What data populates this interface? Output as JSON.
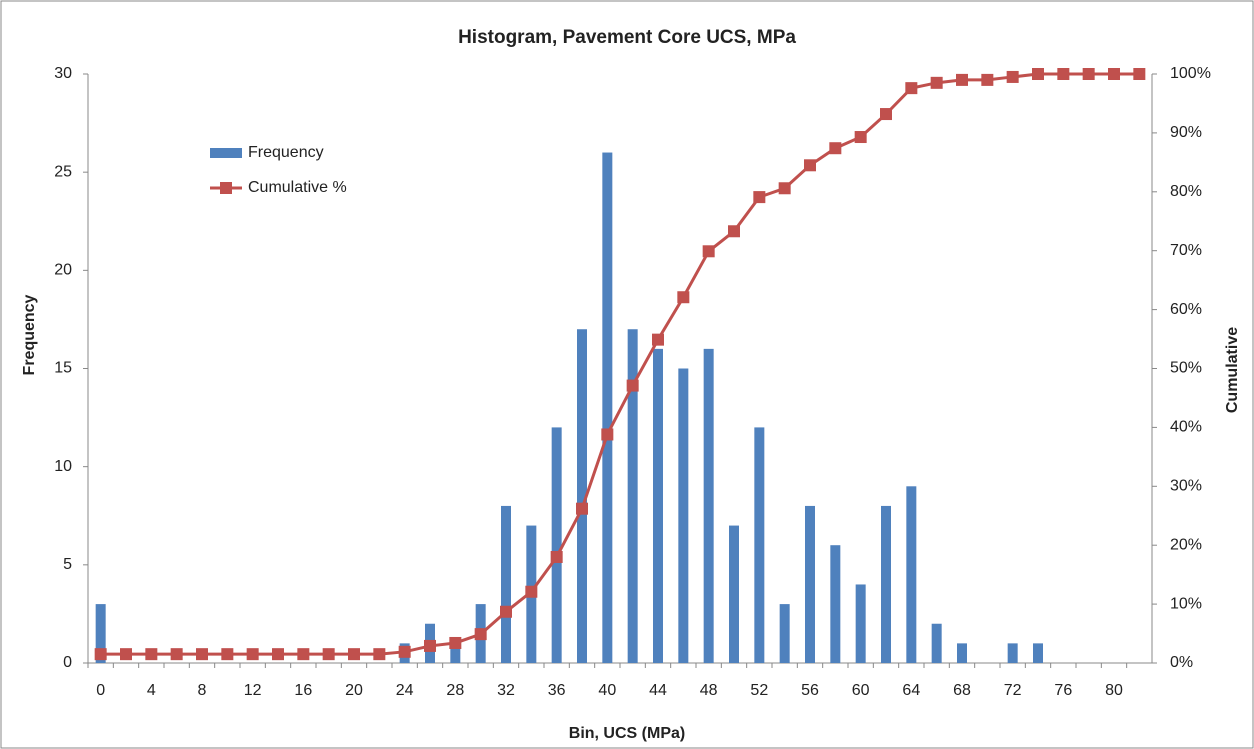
{
  "chart_data": {
    "type": "bar",
    "title": "Histogram, Pavement Core UCS, MPa",
    "x_label": "Bin, UCS (MPa)",
    "y_label": "Frequency",
    "y2_label": "Cumulative",
    "categories": [
      0,
      null,
      4,
      null,
      8,
      null,
      12,
      null,
      16,
      null,
      20,
      null,
      24,
      null,
      28,
      null,
      32,
      null,
      36,
      null,
      40,
      null,
      44,
      null,
      48,
      null,
      52,
      null,
      56,
      null,
      60,
      null,
      64,
      null,
      68,
      null,
      72,
      null,
      76,
      null,
      80,
      null
    ],
    "series": [
      {
        "name": "Frequency",
        "type": "bar",
        "color": "#4f81bd",
        "values": [
          3,
          0,
          0,
          0,
          0,
          0,
          0,
          0,
          0,
          0,
          0,
          0,
          1,
          2,
          1,
          3,
          8,
          7,
          12,
          17,
          26,
          17,
          16,
          15,
          16,
          7,
          12,
          3,
          8,
          6,
          4,
          8,
          9,
          2,
          1,
          0,
          1,
          1,
          0,
          0,
          0,
          0
        ]
      },
      {
        "name": "Cumulative %",
        "type": "line",
        "axis": "y2",
        "color": "#c0504d",
        "values": [
          1.5,
          1.5,
          1.5,
          1.5,
          1.5,
          1.5,
          1.5,
          1.5,
          1.5,
          1.5,
          1.5,
          1.5,
          1.9,
          2.9,
          3.4,
          4.9,
          8.7,
          12.1,
          18.0,
          26.2,
          38.8,
          47.1,
          54.9,
          62.1,
          69.9,
          73.3,
          79.1,
          80.6,
          84.5,
          87.4,
          89.3,
          93.2,
          97.6,
          98.5,
          99.0,
          99.0,
          99.5,
          100,
          100,
          100,
          100,
          100
        ]
      }
    ],
    "ylim": [
      0,
      30
    ],
    "yticks": [
      0,
      5,
      10,
      15,
      20,
      25,
      30
    ],
    "y2lim": [
      0,
      100
    ],
    "y2ticks": [
      {
        "value": 0,
        "label": "0%"
      },
      {
        "value": 10,
        "label": "10%"
      },
      {
        "value": 20,
        "label": "20%"
      },
      {
        "value": 30,
        "label": "30%"
      },
      {
        "value": 40,
        "label": "40%"
      },
      {
        "value": 50,
        "label": "50%"
      },
      {
        "value": 60,
        "label": "60%"
      },
      {
        "value": 70,
        "label": "70%"
      },
      {
        "value": 80,
        "label": "80%"
      },
      {
        "value": 90,
        "label": "90%"
      },
      {
        "value": 100,
        "label": "100%"
      }
    ],
    "grid": false,
    "legend": "upper left"
  }
}
